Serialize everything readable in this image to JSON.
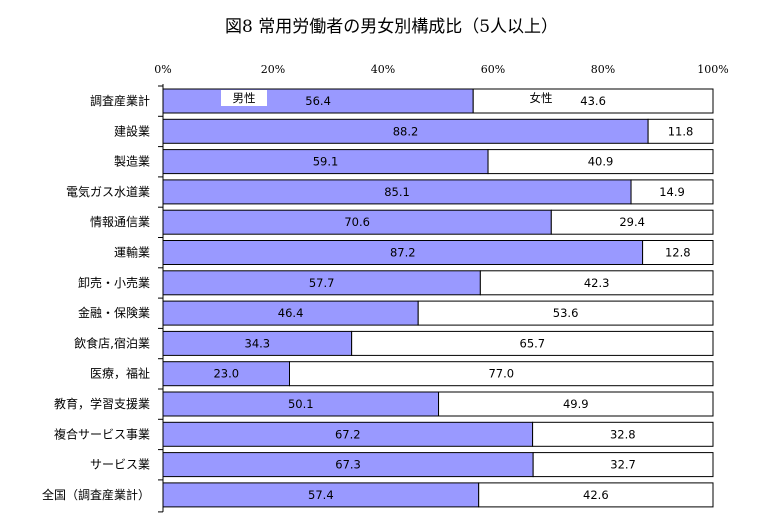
{
  "chart_data": {
    "type": "bar",
    "orientation": "horizontal",
    "stacked": "percent",
    "title": "図8  常用労働者の男女別構成比（5人以上）",
    "categories": [
      "調査産業計",
      "建設業",
      "製造業",
      "電気ガス水道業",
      "情報通信業",
      "運輸業",
      "卸売・小売業",
      "金融・保険業",
      "飲食店,宿泊業",
      "医療，福祉",
      "教育，学習支援業",
      "複合サービス事業",
      "サービス業",
      "全国（調査産業計）"
    ],
    "series": [
      {
        "name": "男性",
        "color": "#9999ff",
        "values": [
          56.4,
          88.2,
          59.1,
          85.1,
          70.6,
          87.2,
          57.7,
          46.4,
          34.3,
          23.0,
          50.1,
          67.2,
          67.3,
          57.4
        ]
      },
      {
        "name": "女性",
        "color": "#ffffff",
        "values": [
          43.6,
          11.8,
          40.9,
          14.9,
          29.4,
          12.8,
          42.3,
          53.6,
          65.7,
          77.0,
          49.9,
          32.8,
          32.7,
          42.6
        ]
      }
    ],
    "xlim": [
      0,
      100
    ],
    "xticks": [
      "0%",
      "20%",
      "40%",
      "60%",
      "80%",
      "100%"
    ],
    "xlabel": "",
    "ylabel": "",
    "grid": false,
    "legend": "inside first bar"
  }
}
